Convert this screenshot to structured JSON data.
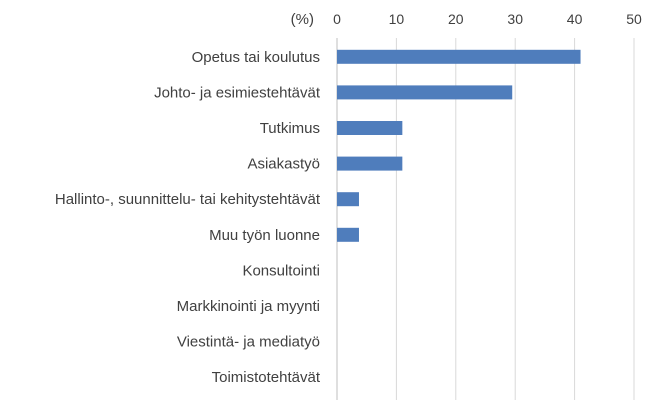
{
  "chart_data": {
    "type": "bar",
    "orientation": "horizontal",
    "unit_label": "(%)",
    "categories": [
      "Opetus tai koulutus",
      "Johto- ja esimiestehtävät",
      "Tutkimus",
      "Asiakastyö",
      "Hallinto-, suunnittelu- tai kehitystehtävät",
      "Muu työn luonne",
      "Konsultointi",
      "Markkinointi ja myynti",
      "Viestintä- ja mediatyö",
      "Toimistotehtävät"
    ],
    "values": [
      41,
      29.5,
      11,
      11,
      3.7,
      3.7,
      0,
      0,
      0,
      0
    ],
    "xlim": [
      0,
      50
    ],
    "xticks": [
      0,
      10,
      20,
      30,
      40,
      50
    ],
    "xaxis_position": "top",
    "grid": "vertical",
    "legend": "none",
    "colors": {
      "bar": "#4f7dbc",
      "grid": "#d9d9d9",
      "text": "#404040"
    }
  }
}
